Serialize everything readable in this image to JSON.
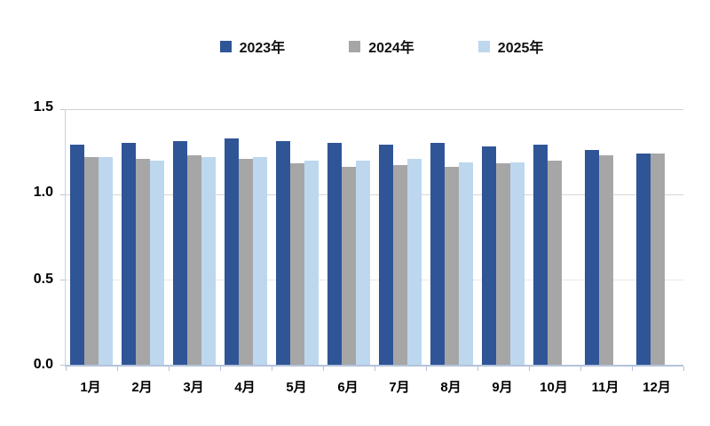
{
  "y_axis": {
    "tick_labels": [
      "0.0",
      "0.5",
      "1.0",
      "1.5"
    ]
  },
  "chart_data": {
    "type": "bar",
    "title": "",
    "xlabel": "",
    "ylabel": "",
    "ylim": [
      0,
      1.5
    ],
    "y_ticks": [
      0.0,
      0.5,
      1.0,
      1.5
    ],
    "grid": "horizontal",
    "legend_position": "top",
    "categories": [
      "1月",
      "2月",
      "3月",
      "4月",
      "5月",
      "6月",
      "7月",
      "8月",
      "9月",
      "10月",
      "11月",
      "12月"
    ],
    "series": [
      {
        "name": "2023年",
        "color": "#2F5597",
        "values": [
          1.29,
          1.3,
          1.31,
          1.33,
          1.31,
          1.3,
          1.29,
          1.3,
          1.28,
          1.29,
          1.26,
          1.24
        ]
      },
      {
        "name": "2024年",
        "color": "#A6A6A6",
        "values": [
          1.22,
          1.21,
          1.23,
          1.21,
          1.18,
          1.16,
          1.17,
          1.16,
          1.18,
          1.2,
          1.23,
          1.24
        ]
      },
      {
        "name": "2025年",
        "color": "#BDD7EE",
        "values": [
          1.22,
          1.2,
          1.22,
          1.22,
          1.2,
          1.2,
          1.21,
          1.19,
          1.19,
          null,
          null,
          null
        ]
      }
    ]
  }
}
